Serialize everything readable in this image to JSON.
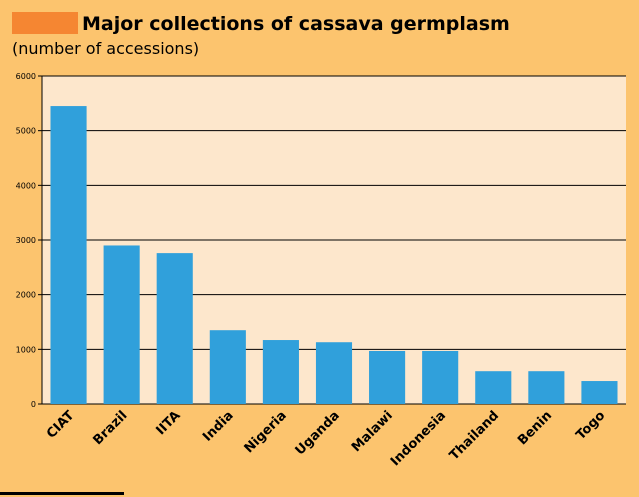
{
  "colors": {
    "background": "#fcc46e",
    "plot_background": "#fde7cc",
    "bar": "#30a0db",
    "title_marker": "#f58632",
    "gridline": "#000000"
  },
  "chart_data": {
    "type": "bar",
    "title": "Major collections of cassava germplasm",
    "subtitle": "(number of accessions)",
    "xlabel": "",
    "ylabel": "",
    "ylim": [
      0,
      6000
    ],
    "yticks": [
      0,
      1000,
      2000,
      3000,
      4000,
      5000,
      6000
    ],
    "ytick_labels": [
      "0",
      "1000",
      "2000",
      "3000",
      "4000",
      "5000",
      "6000"
    ],
    "grid": "horizontal",
    "categories": [
      "CIAT",
      "Brazil",
      "IITA",
      "India",
      "Nigeria",
      "Uganda",
      "Malawi",
      "Indonesia",
      "Thailand",
      "Benin",
      "Togo"
    ],
    "values": [
      5450,
      2900,
      2760,
      1350,
      1170,
      1130,
      970,
      970,
      600,
      600,
      420
    ]
  }
}
